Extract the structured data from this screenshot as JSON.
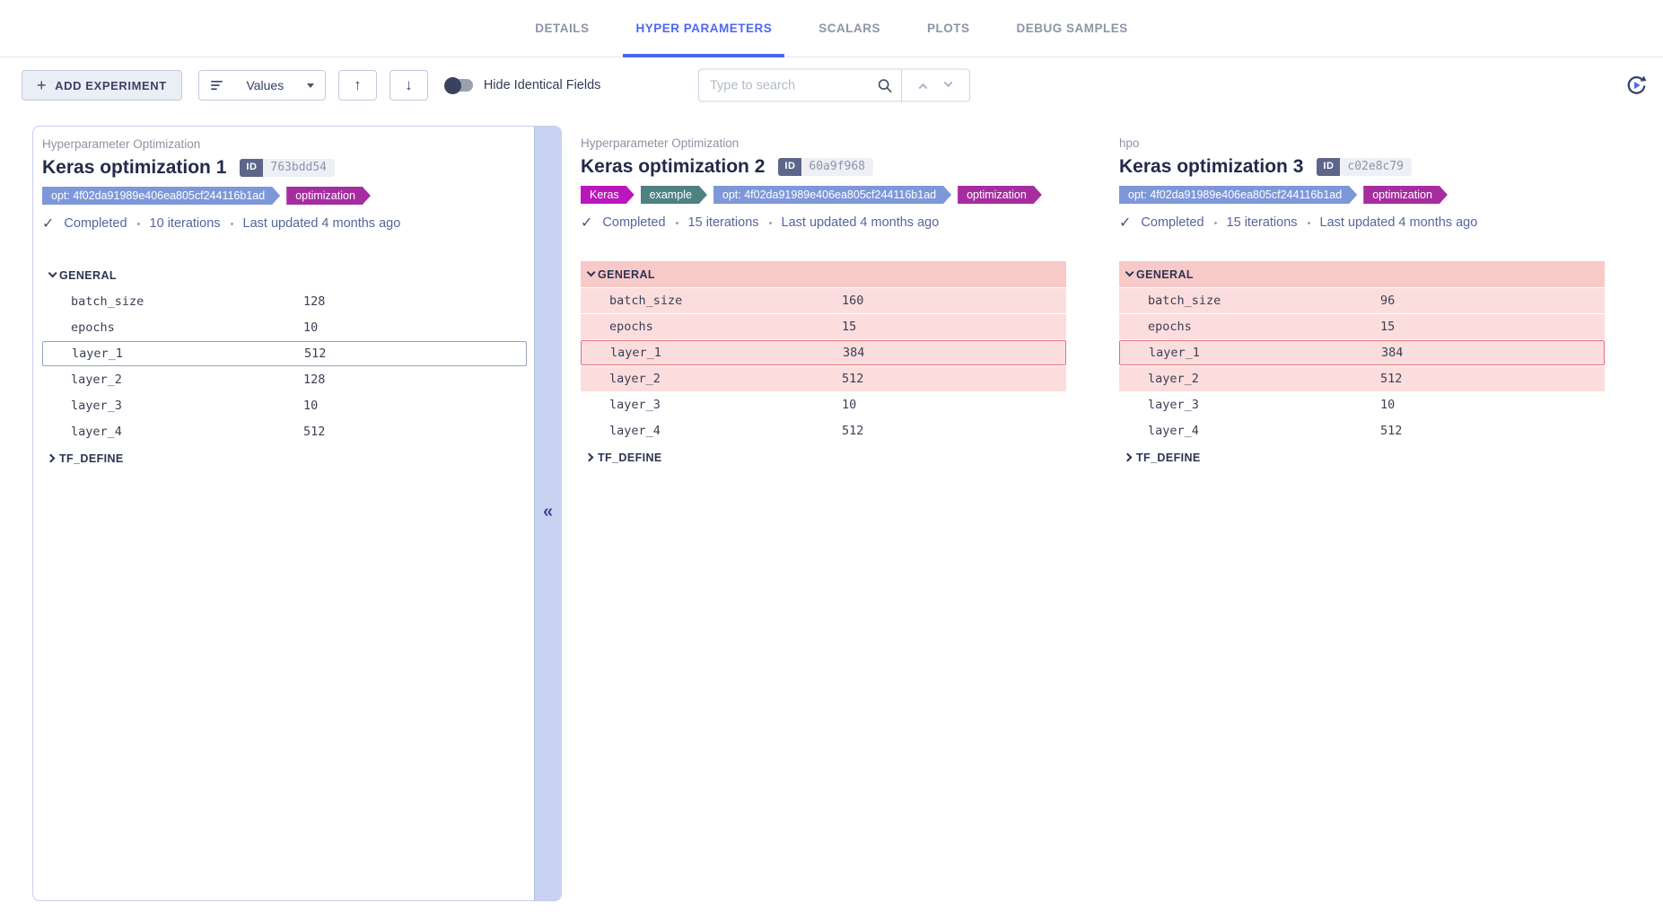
{
  "tabs": [
    {
      "label": "DETAILS",
      "active": false
    },
    {
      "label": "HYPER PARAMETERS",
      "active": true
    },
    {
      "label": "SCALARS",
      "active": false
    },
    {
      "label": "PLOTS",
      "active": false
    },
    {
      "label": "DEBUG SAMPLES",
      "active": false
    }
  ],
  "toolbar": {
    "add_experiment_label": "ADD EXPERIMENT",
    "values_label": "Values",
    "hide_identical_label": "Hide Identical Fields",
    "search_placeholder": "Type to search"
  },
  "collapse_glyph": "«",
  "colors": {
    "accent": "#4d67f2",
    "tab_inactive": "#8c95a6",
    "card_border": "#c7cfee",
    "strip_bg": "#cad2f2",
    "title_text": "#242a4a",
    "status_text": "#56659e",
    "param_text": "#3a3f55",
    "diff_header_bg": "#f8c9c9",
    "diff_row_bg": "#fcdddd",
    "diff_outline": "#e2707a",
    "base_outline": "#9aa4b8"
  },
  "experiments": [
    {
      "project": "Hyperparameter Optimization",
      "title": "Keras optimization 1",
      "id_label": "ID",
      "id_value": "763bdd54",
      "tags": [
        {
          "label": "opt: 4f02da91989e406ea805cf244116b1ad",
          "color": "#7e97d9"
        },
        {
          "label": "optimization",
          "color": "#a62da0"
        }
      ],
      "status": "Completed",
      "iterations": "10 iterations",
      "updated": "Last updated 4 months ago",
      "sections": [
        {
          "name": "GENERAL",
          "collapsed": false,
          "diff": false,
          "rows": [
            {
              "key": "batch_size",
              "value": "128",
              "diff": false,
              "selected": false
            },
            {
              "key": "epochs",
              "value": "10",
              "diff": false,
              "selected": false
            },
            {
              "key": "layer_1",
              "value": "512",
              "diff": false,
              "selected": true
            },
            {
              "key": "layer_2",
              "value": "128",
              "diff": false,
              "selected": false
            },
            {
              "key": "layer_3",
              "value": "10",
              "diff": false,
              "selected": false
            },
            {
              "key": "layer_4",
              "value": "512",
              "diff": false,
              "selected": false
            }
          ]
        },
        {
          "name": "TF_DEFINE",
          "collapsed": true,
          "diff": false,
          "rows": []
        }
      ]
    },
    {
      "project": "Hyperparameter Optimization",
      "title": "Keras optimization 2",
      "id_label": "ID",
      "id_value": "60a9f968",
      "tags": [
        {
          "label": "Keras",
          "color": "#bb16bb"
        },
        {
          "label": "example",
          "color": "#4d8281"
        },
        {
          "label": "opt: 4f02da91989e406ea805cf244116b1ad",
          "color": "#7e97d9"
        },
        {
          "label": "optimization",
          "color": "#a62da0"
        }
      ],
      "status": "Completed",
      "iterations": "15 iterations",
      "updated": "Last updated 4 months ago",
      "sections": [
        {
          "name": "GENERAL",
          "collapsed": false,
          "diff": true,
          "rows": [
            {
              "key": "batch_size",
              "value": "160",
              "diff": true,
              "selected": false
            },
            {
              "key": "epochs",
              "value": "15",
              "diff": true,
              "selected": false
            },
            {
              "key": "layer_1",
              "value": "384",
              "diff": true,
              "selected": true
            },
            {
              "key": "layer_2",
              "value": "512",
              "diff": true,
              "selected": false
            },
            {
              "key": "layer_3",
              "value": "10",
              "diff": false,
              "selected": false
            },
            {
              "key": "layer_4",
              "value": "512",
              "diff": false,
              "selected": false
            }
          ]
        },
        {
          "name": "TF_DEFINE",
          "collapsed": true,
          "diff": false,
          "rows": []
        }
      ]
    },
    {
      "project": "hpo",
      "title": "Keras optimization 3",
      "id_label": "ID",
      "id_value": "c02e8c79",
      "tags": [
        {
          "label": "opt: 4f02da91989e406ea805cf244116b1ad",
          "color": "#7e97d9"
        },
        {
          "label": "optimization",
          "color": "#a62da0"
        }
      ],
      "status": "Completed",
      "iterations": "15 iterations",
      "updated": "Last updated 4 months ago",
      "sections": [
        {
          "name": "GENERAL",
          "collapsed": false,
          "diff": true,
          "rows": [
            {
              "key": "batch_size",
              "value": "96",
              "diff": true,
              "selected": false
            },
            {
              "key": "epochs",
              "value": "15",
              "diff": true,
              "selected": false
            },
            {
              "key": "layer_1",
              "value": "384",
              "diff": true,
              "selected": true
            },
            {
              "key": "layer_2",
              "value": "512",
              "diff": true,
              "selected": false
            },
            {
              "key": "layer_3",
              "value": "10",
              "diff": false,
              "selected": false
            },
            {
              "key": "layer_4",
              "value": "512",
              "diff": false,
              "selected": false
            }
          ]
        },
        {
          "name": "TF_DEFINE",
          "collapsed": true,
          "diff": false,
          "rows": []
        }
      ]
    }
  ]
}
